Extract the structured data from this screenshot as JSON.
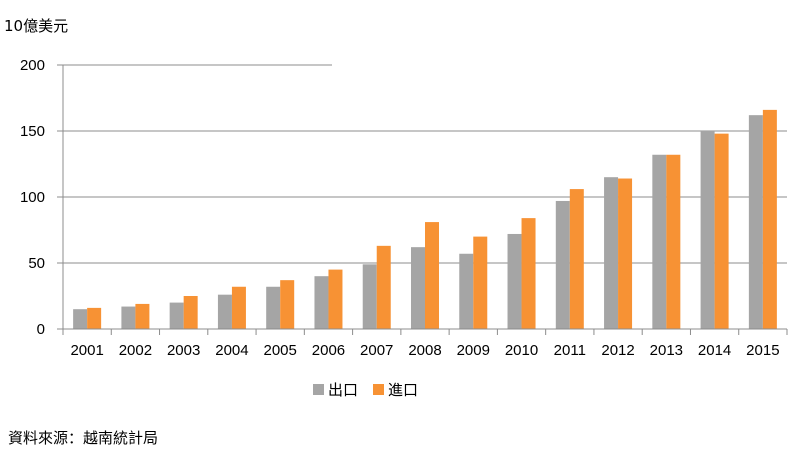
{
  "chart_data": {
    "type": "bar",
    "unit_label": "10億美元",
    "categories": [
      "2001",
      "2002",
      "2003",
      "2004",
      "2005",
      "2006",
      "2007",
      "2008",
      "2009",
      "2010",
      "2011",
      "2012",
      "2013",
      "2014",
      "2015"
    ],
    "series": [
      {
        "name": "出口",
        "color": "#a5a5a5",
        "values": [
          15,
          17,
          20,
          26,
          32,
          40,
          49,
          62,
          57,
          72,
          97,
          115,
          132,
          150,
          162
        ]
      },
      {
        "name": "進口",
        "color": "#f79234",
        "values": [
          16,
          19,
          25,
          32,
          37,
          45,
          63,
          81,
          70,
          84,
          106,
          114,
          132,
          148,
          166
        ]
      }
    ],
    "ylim": [
      0,
      200
    ],
    "yticks": [
      0,
      50,
      100,
      150,
      200
    ],
    "grid": true,
    "legend_position": "bottom-center"
  },
  "footer": {
    "source": "資料來源：越南統計局"
  }
}
